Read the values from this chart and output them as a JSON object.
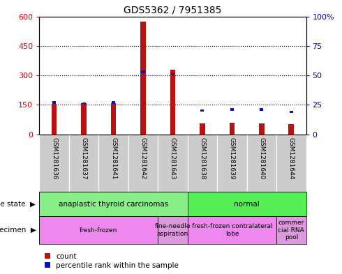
{
  "title": "GDS5362 / 7951385",
  "samples": [
    "GSM1281636",
    "GSM1281637",
    "GSM1281641",
    "GSM1281642",
    "GSM1281643",
    "GSM1281638",
    "GSM1281639",
    "GSM1281640",
    "GSM1281644"
  ],
  "counts": [
    155,
    160,
    160,
    575,
    330,
    55,
    60,
    55,
    50
  ],
  "percentiles": [
    27,
    26,
    27,
    53,
    51,
    20,
    21,
    21,
    19
  ],
  "ylim_left": [
    0,
    600
  ],
  "ylim_right": [
    0,
    100
  ],
  "yticks_left": [
    0,
    150,
    300,
    450,
    600
  ],
  "yticks_right": [
    0,
    25,
    50,
    75,
    100
  ],
  "ytick_labels_left": [
    "0",
    "150",
    "300",
    "450",
    "600"
  ],
  "ytick_labels_right": [
    "0",
    "25",
    "50",
    "75",
    "100%"
  ],
  "left_axis_color": "#cc0000",
  "right_axis_color": "#0000cc",
  "bar_color_count": "#bb1111",
  "bar_color_pct": "#1111bb",
  "grid_color": "#000000",
  "disease_state_row": [
    {
      "label": "anaplastic thyroid carcinomas",
      "start": 0,
      "end": 5,
      "color": "#88ee88"
    },
    {
      "label": "normal",
      "start": 5,
      "end": 9,
      "color": "#55ee55"
    }
  ],
  "specimen_row": [
    {
      "label": "fresh-frozen",
      "start": 0,
      "end": 4,
      "color": "#ee88ee"
    },
    {
      "label": "fine-needle\naspiration",
      "start": 4,
      "end": 5,
      "color": "#dd99dd"
    },
    {
      "label": "fresh-frozen contralateral\nlobe",
      "start": 5,
      "end": 8,
      "color": "#ee88ee"
    },
    {
      "label": "commer\ncial RNA\npool",
      "start": 8,
      "end": 9,
      "color": "#dd99dd"
    }
  ],
  "legend_count_label": "count",
  "legend_pct_label": "percentile rank within the sample",
  "bg_color": "#ffffff",
  "xticklabel_bg": "#cccccc",
  "bar_width": 0.18,
  "blue_bar_width": 0.12,
  "fig_width": 4.9,
  "fig_height": 3.93
}
